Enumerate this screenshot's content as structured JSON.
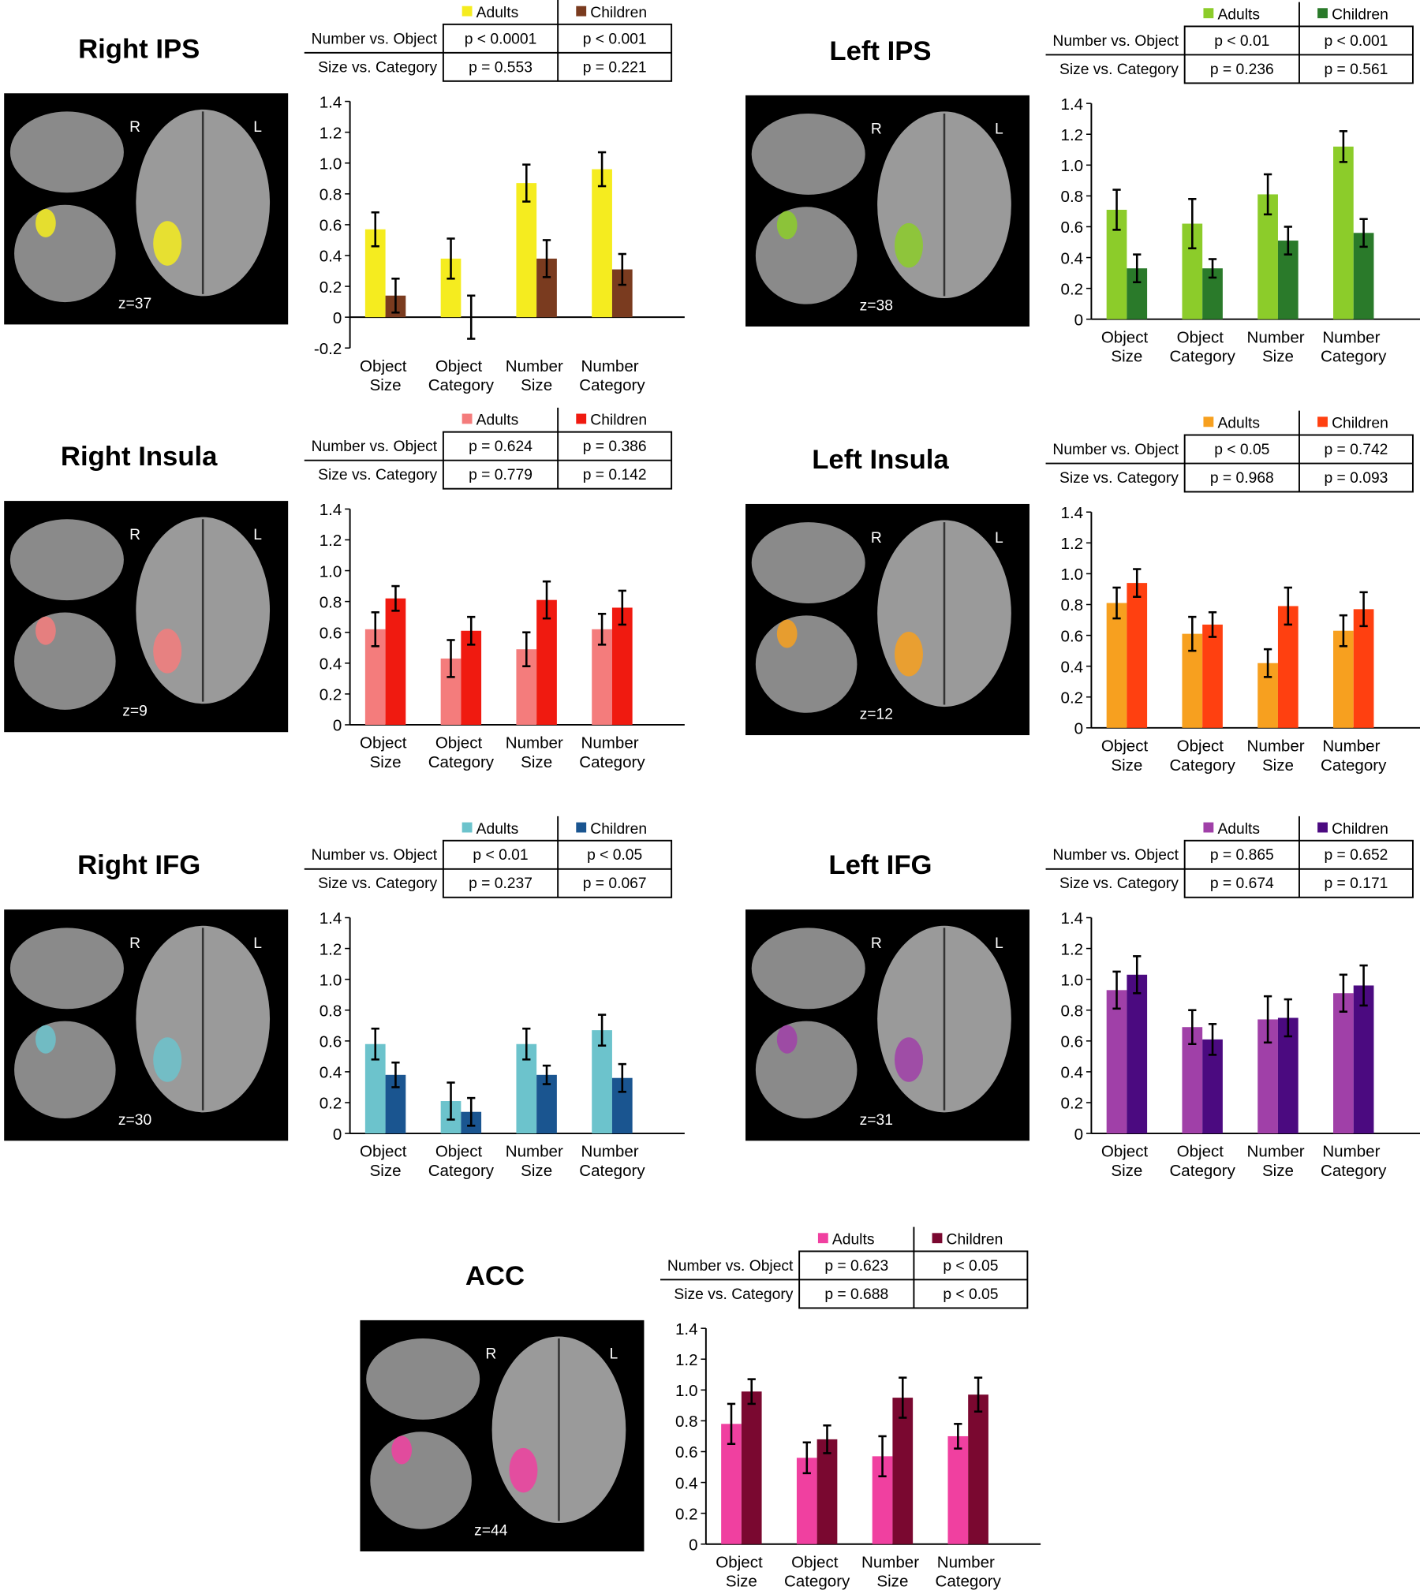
{
  "chart_data": [
    {
      "type": "bar",
      "title": "Right IPS",
      "image_labels": {
        "right": "R",
        "left": "L",
        "slice": "z=37"
      },
      "table": {
        "rows": [
          [
            "Number vs. Object",
            "p < 0.0001",
            "p < 0.001"
          ],
          [
            "Size vs. Category",
            "p = 0.553",
            "p = 0.221"
          ]
        ]
      },
      "categories": [
        "Object Size",
        "Object Category",
        "Number Size",
        "Number Category"
      ],
      "series": [
        {
          "name": "Adults",
          "color": "#f5ec1f",
          "values": [
            0.57,
            0.38,
            0.87,
            0.96
          ],
          "errors": [
            0.11,
            0.13,
            0.12,
            0.11
          ]
        },
        {
          "name": "Children",
          "color": "#7a3b1f",
          "values": [
            0.14,
            0.0,
            0.38,
            0.31
          ],
          "errors": [
            0.11,
            0.14,
            0.12,
            0.1
          ]
        }
      ],
      "ylim": [
        -0.2,
        1.4
      ],
      "yticks": [
        -0.2,
        0,
        0.2,
        0.4,
        0.6,
        0.8,
        {
          "value": 1,
          "label": "1.0"
        },
        1.2,
        1.4
      ]
    },
    {
      "type": "bar",
      "title": "Left IPS",
      "image_labels": {
        "right": "R",
        "left": "L",
        "slice": "z=38"
      },
      "table": {
        "rows": [
          [
            "Number vs. Object",
            "p < 0.01",
            "p < 0.001"
          ],
          [
            "Size vs. Category",
            "p = 0.236",
            "p = 0.561"
          ]
        ]
      },
      "categories": [
        "Object Size",
        "Object Category",
        "Number Size",
        "Number Category"
      ],
      "series": [
        {
          "name": "Adults",
          "color": "#8ccc2a",
          "values": [
            0.71,
            0.62,
            0.81,
            1.12
          ],
          "errors": [
            0.13,
            0.16,
            0.13,
            0.1
          ]
        },
        {
          "name": "Children",
          "color": "#2a7a2a",
          "values": [
            0.33,
            0.33,
            0.51,
            0.56
          ],
          "errors": [
            0.09,
            0.06,
            0.09,
            0.09
          ]
        }
      ],
      "ylim": [
        0,
        1.4
      ],
      "yticks": [
        0,
        0.2,
        0.4,
        0.6,
        0.8,
        {
          "value": 1,
          "label": "1.0"
        },
        1.2,
        1.4
      ]
    },
    {
      "type": "bar",
      "title": "Right Insula",
      "image_labels": {
        "right": "R",
        "left": "L",
        "slice": "z=9"
      },
      "table": {
        "rows": [
          [
            "Number vs. Object",
            "p = 0.624",
            "p = 0.386"
          ],
          [
            "Size vs. Category",
            "p = 0.779",
            "p = 0.142"
          ]
        ]
      },
      "categories": [
        "Object Size",
        "Object Category",
        "Number Size",
        "Number Category"
      ],
      "series": [
        {
          "name": "Adults",
          "color": "#f47c7c",
          "values": [
            0.62,
            0.43,
            0.49,
            0.62
          ],
          "errors": [
            0.11,
            0.12,
            0.11,
            0.1
          ]
        },
        {
          "name": "Children",
          "color": "#f01a10",
          "values": [
            0.82,
            0.61,
            0.81,
            0.76
          ],
          "errors": [
            0.08,
            0.09,
            0.12,
            0.11
          ]
        }
      ],
      "ylim": [
        0,
        1.4
      ],
      "yticks": [
        0,
        0.2,
        0.4,
        0.6,
        0.8,
        {
          "value": 1,
          "label": "1.0"
        },
        1.2,
        1.4
      ]
    },
    {
      "type": "bar",
      "title": "Left Insula",
      "image_labels": {
        "right": "R",
        "left": "L",
        "slice": "z=12"
      },
      "table": {
        "rows": [
          [
            "Number vs. Object",
            "p < 0.05",
            "p = 0.742"
          ],
          [
            "Size vs. Category",
            "p = 0.968",
            "p = 0.093"
          ]
        ]
      },
      "categories": [
        "Object Size",
        "Object Category",
        "Number Size",
        "Number Category"
      ],
      "series": [
        {
          "name": "Adults",
          "color": "#f7a01f",
          "values": [
            0.81,
            0.61,
            0.42,
            0.63
          ],
          "errors": [
            0.1,
            0.11,
            0.09,
            0.1
          ]
        },
        {
          "name": "Children",
          "color": "#ff4010",
          "values": [
            0.94,
            0.67,
            0.79,
            0.77
          ],
          "errors": [
            0.09,
            0.08,
            0.12,
            0.11
          ]
        }
      ],
      "ylim": [
        0,
        1.4
      ],
      "yticks": [
        0,
        0.2,
        0.4,
        0.6,
        0.8,
        {
          "value": 1,
          "label": "1.0"
        },
        1.2,
        1.4
      ]
    },
    {
      "type": "bar",
      "title": "Right IFG",
      "image_labels": {
        "right": "R",
        "left": "L",
        "slice": "z=30"
      },
      "table": {
        "rows": [
          [
            "Number vs. Object",
            "p < 0.01",
            "p < 0.05"
          ],
          [
            "Size vs. Category",
            "p = 0.237",
            "p = 0.067"
          ]
        ]
      },
      "categories": [
        "Object Size",
        "Object Category",
        "Number Size",
        "Number Category"
      ],
      "series": [
        {
          "name": "Adults",
          "color": "#6cc3cc",
          "values": [
            0.58,
            0.21,
            0.58,
            0.67
          ],
          "errors": [
            0.1,
            0.12,
            0.1,
            0.1
          ]
        },
        {
          "name": "Children",
          "color": "#1a5590",
          "values": [
            0.38,
            0.14,
            0.38,
            0.36
          ],
          "errors": [
            0.08,
            0.09,
            0.06,
            0.09
          ]
        }
      ],
      "ylim": [
        0,
        1.4
      ],
      "yticks": [
        0,
        0.2,
        0.4,
        0.6,
        0.8,
        {
          "value": 1,
          "label": "1.0"
        },
        1.2,
        1.4
      ]
    },
    {
      "type": "bar",
      "title": "Left IFG",
      "image_labels": {
        "right": "R",
        "left": "L",
        "slice": "z=31"
      },
      "table": {
        "rows": [
          [
            "Number vs. Object",
            "p = 0.865",
            "p = 0.652"
          ],
          [
            "Size vs. Category",
            "p = 0.674",
            "p = 0.171"
          ]
        ]
      },
      "categories": [
        "Object Size",
        "Object Category",
        "Number Size",
        "Number Category"
      ],
      "series": [
        {
          "name": "Adults",
          "color": "#a040a8",
          "values": [
            0.93,
            0.69,
            0.74,
            0.91
          ],
          "errors": [
            0.12,
            0.11,
            0.15,
            0.12
          ]
        },
        {
          "name": "Children",
          "color": "#4b0a80",
          "values": [
            1.03,
            0.61,
            0.75,
            0.96
          ],
          "errors": [
            0.12,
            0.1,
            0.12,
            0.13
          ]
        }
      ],
      "ylim": [
        0,
        1.4
      ],
      "yticks": [
        0,
        0.2,
        0.4,
        0.6,
        0.8,
        {
          "value": 1,
          "label": "1.0"
        },
        1.2,
        1.4
      ]
    },
    {
      "type": "bar",
      "title": "ACC",
      "image_labels": {
        "right": "R",
        "left": "L",
        "slice": "z=44"
      },
      "table": {
        "rows": [
          [
            "Number vs. Object",
            "p = 0.623",
            "p < 0.05"
          ],
          [
            "Size vs. Category",
            "p = 0.688",
            "p < 0.05"
          ]
        ]
      },
      "categories": [
        "Object Size",
        "Object Category",
        "Number Size",
        "Number Category"
      ],
      "series": [
        {
          "name": "Adults",
          "color": "#f040a0",
          "values": [
            0.78,
            0.56,
            0.57,
            0.7
          ],
          "errors": [
            0.13,
            0.1,
            0.13,
            0.08
          ]
        },
        {
          "name": "Children",
          "color": "#7a0830",
          "values": [
            0.99,
            0.68,
            0.95,
            0.97
          ],
          "errors": [
            0.08,
            0.09,
            0.13,
            0.11
          ]
        }
      ],
      "ylim": [
        0,
        1.4
      ],
      "yticks": [
        0,
        0.2,
        0.4,
        0.6,
        0.8,
        {
          "value": 1,
          "label": "1.0"
        },
        1.2,
        1.4
      ]
    }
  ]
}
